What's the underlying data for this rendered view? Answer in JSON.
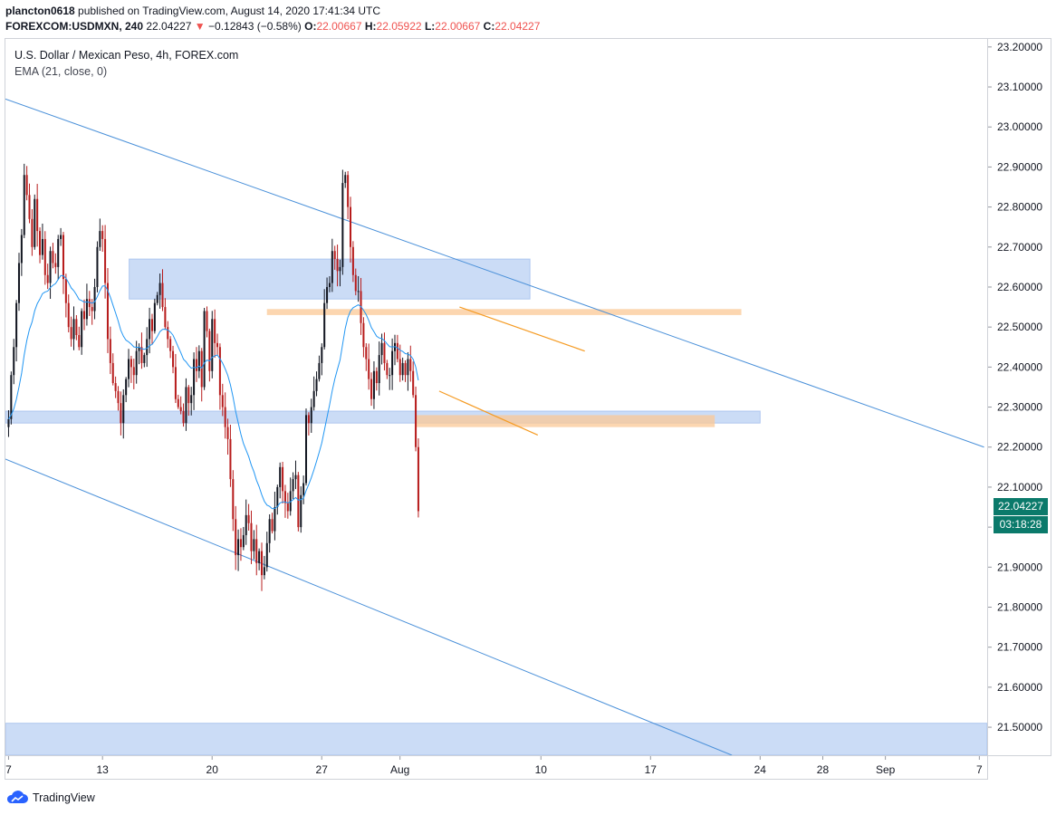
{
  "header": {
    "user": "plancton0618",
    "published_text": " published on TradingView.com, August 14, 2020 17:41:34 UTC",
    "symbol": "FOREXCOM:USDMXN, 240",
    "last": "22.04227",
    "arrow": "▼",
    "change": "−0.12843 (−0.58%)",
    "o_label": "O:",
    "o": "22.00667",
    "h_label": "H:",
    "h": "22.05922",
    "l_label": "L:",
    "l": "22.00667",
    "c_label": "C:",
    "c": "22.04227"
  },
  "legend": {
    "title": "U.S. Dollar / Mexican Peso, 4h, FOREX.com",
    "indicator": "EMA (21, close, 0)"
  },
  "price_tag": {
    "price": "22.04227",
    "countdown": "03:18:28"
  },
  "brand": {
    "name": "TradingView"
  },
  "colors": {
    "up": "#131722",
    "down": "#b71c1c",
    "ema": "#2196f3",
    "channel": "#4a90d9",
    "zone_blue": "#a9c4f0",
    "zone_orange": "#fbc895",
    "wedge": "#f59b23",
    "tag": "#0b7a6b"
  },
  "chart_data": {
    "type": "candlestick",
    "ylim": [
      21.43,
      23.22
    ],
    "y_ticks": [
      "23.20000",
      "23.10000",
      "23.00000",
      "22.90000",
      "22.80000",
      "22.70000",
      "22.60000",
      "22.50000",
      "22.40000",
      "22.30000",
      "22.20000",
      "22.10000",
      "22.00000",
      "21.90000",
      "21.80000",
      "21.70000",
      "21.60000",
      "21.50000"
    ],
    "y_tick_values": [
      23.2,
      23.1,
      23.0,
      22.9,
      22.8,
      22.7,
      22.6,
      22.5,
      22.4,
      22.3,
      22.2,
      22.1,
      22.0,
      21.9,
      21.8,
      21.7,
      21.6,
      21.5
    ],
    "x_ticks": [
      "7",
      "13",
      "20",
      "27",
      "Aug",
      "10",
      "17",
      "24",
      "28",
      "Sep",
      "7"
    ],
    "x_tick_days": [
      7,
      13,
      20,
      27,
      32,
      41,
      48,
      55,
      59,
      63,
      69
    ],
    "x_range_days": [
      6.8,
      69.5
    ],
    "candle_count": 158,
    "first_candle_day": 7,
    "candle_step_days": 0.1667,
    "closes": [
      22.27,
      22.38,
      22.45,
      22.56,
      22.66,
      22.73,
      22.88,
      22.83,
      22.77,
      22.7,
      22.82,
      22.74,
      22.68,
      22.72,
      22.63,
      22.61,
      22.69,
      22.66,
      22.65,
      22.72,
      22.73,
      22.62,
      22.56,
      22.5,
      22.47,
      22.52,
      22.48,
      22.45,
      22.54,
      22.52,
      22.57,
      22.55,
      22.54,
      22.6,
      22.7,
      22.74,
      22.72,
      22.61,
      22.47,
      22.41,
      22.36,
      22.34,
      22.31,
      22.26,
      22.33,
      22.37,
      22.42,
      22.4,
      22.38,
      22.44,
      22.45,
      22.41,
      22.43,
      22.47,
      22.52,
      22.49,
      22.56,
      22.58,
      22.61,
      22.55,
      22.5,
      22.47,
      22.44,
      22.4,
      22.32,
      22.3,
      22.29,
      22.26,
      22.35,
      22.31,
      22.33,
      22.42,
      22.39,
      22.44,
      22.35,
      22.54,
      22.49,
      22.39,
      22.52,
      22.46,
      22.45,
      22.33,
      22.3,
      22.25,
      22.22,
      22.12,
      22.02,
      21.93,
      21.97,
      21.95,
      21.98,
      22.03,
      22.01,
      21.94,
      21.97,
      21.91,
      21.94,
      21.88,
      21.9,
      21.96,
      22.02,
      21.99,
      22.05,
      22.1,
      22.15,
      22.09,
      22.06,
      22.04,
      22.09,
      22.12,
      22.13,
      22.0,
      22.08,
      22.11,
      22.28,
      22.26,
      22.3,
      22.34,
      22.37,
      22.41,
      22.45,
      22.56,
      22.6,
      22.61,
      22.69,
      22.67,
      22.64,
      22.65,
      22.86,
      22.88,
      22.8,
      22.7,
      22.63,
      22.59,
      22.59,
      22.51,
      22.45,
      22.42,
      22.37,
      22.32,
      22.39,
      22.36,
      22.43,
      22.46,
      22.41,
      22.38,
      22.38,
      22.44,
      22.46,
      22.42,
      22.38,
      22.41,
      22.38,
      22.42,
      22.39,
      22.33,
      22.2,
      22.04
    ],
    "ema_period": 21,
    "shapes": {
      "channel_upper": [
        {
          "day": 6.8,
          "price": 23.07
        },
        {
          "day": 69.3,
          "price": 22.2
        }
      ],
      "channel_lower": [
        {
          "day": 6.8,
          "price": 22.17
        },
        {
          "day": 53.2,
          "price": 21.43
        }
      ],
      "zones_blue": [
        {
          "from_day": 14.7,
          "to_day": 40.3,
          "top": 22.67,
          "bottom": 22.57
        },
        {
          "from_day": 6.8,
          "to_day": 55.0,
          "top": 22.29,
          "bottom": 22.26
        },
        {
          "from_day": 6.8,
          "to_day": 69.5,
          "top": 21.51,
          "bottom": 21.43
        }
      ],
      "zones_orange": [
        {
          "from_day": 23.5,
          "to_day": 53.8,
          "top": 22.545,
          "bottom": 22.53
        },
        {
          "from_day": 33.0,
          "to_day": 52.1,
          "top": 22.28,
          "bottom": 22.25
        }
      ],
      "wedge": [
        {
          "from": {
            "day": 35.8,
            "price": 22.55
          },
          "to": {
            "day": 43.8,
            "price": 22.44
          }
        },
        {
          "from": {
            "day": 34.5,
            "price": 22.34
          },
          "to": {
            "day": 40.8,
            "price": 22.23
          }
        }
      ]
    }
  }
}
